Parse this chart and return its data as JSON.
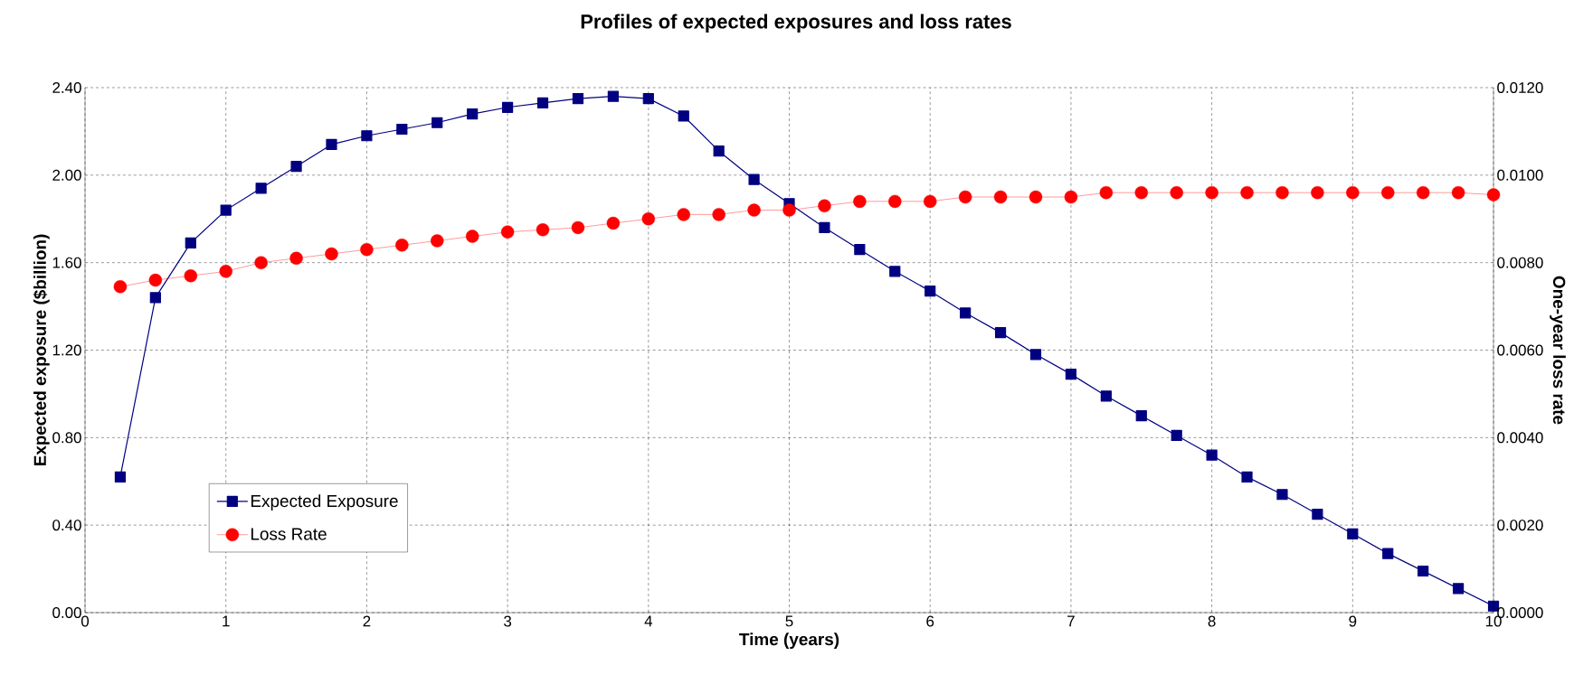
{
  "chart_data": {
    "type": "line",
    "title": "Profiles of expected exposures and loss rates",
    "xlabel": "Time (years)",
    "ylabel": "Expected exposure ($billion)",
    "y2label": "One-year loss rate",
    "x": [
      0.25,
      0.5,
      0.75,
      1,
      1.25,
      1.5,
      1.75,
      2,
      2.25,
      2.5,
      2.75,
      3,
      3.25,
      3.5,
      3.75,
      4,
      4.25,
      4.5,
      4.75,
      5,
      5.25,
      5.5,
      5.75,
      6,
      6.25,
      6.5,
      6.75,
      7,
      7.25,
      7.5,
      7.75,
      8,
      8.25,
      8.5,
      8.75,
      9,
      9.25,
      9.5,
      9.75,
      10
    ],
    "series": [
      {
        "name": "Expected Exposure",
        "color": "#000080",
        "marker": "square",
        "values": [
          0.62,
          1.44,
          1.69,
          1.84,
          1.94,
          2.04,
          2.14,
          2.18,
          2.21,
          2.24,
          2.28,
          2.31,
          2.33,
          2.35,
          2.36,
          2.35,
          2.27,
          2.11,
          1.98,
          1.87,
          1.76,
          1.66,
          1.56,
          1.47,
          1.37,
          1.28,
          1.18,
          1.09,
          0.99,
          0.9,
          0.81,
          0.72,
          0.62,
          0.54,
          0.45,
          0.36,
          0.27,
          0.19,
          0.11,
          0.03
        ]
      },
      {
        "name": "Loss Rate",
        "color": "#ff0000",
        "marker": "circle",
        "axis": "y2",
        "values": [
          0.00745,
          0.0076,
          0.0077,
          0.0078,
          0.008,
          0.0081,
          0.0082,
          0.0083,
          0.0084,
          0.0085,
          0.0086,
          0.0087,
          0.00875,
          0.0088,
          0.0089,
          0.009,
          0.0091,
          0.0091,
          0.0092,
          0.0092,
          0.0093,
          0.0094,
          0.0094,
          0.0094,
          0.0095,
          0.0095,
          0.0095,
          0.0095,
          0.0096,
          0.0096,
          0.0096,
          0.0096,
          0.0096,
          0.0096,
          0.0096,
          0.0096,
          0.0096,
          0.0096,
          0.0096,
          0.00955
        ]
      }
    ],
    "xlim": [
      0,
      10
    ],
    "xticks": [
      0,
      1,
      2,
      3,
      4,
      5,
      6,
      7,
      8,
      9,
      10
    ],
    "ylim": [
      0,
      2.4
    ],
    "yticks": [
      {
        "value": 0,
        "label": "0.00"
      },
      {
        "value": 0.4,
        "label": "0.40"
      },
      {
        "value": 0.8,
        "label": "0.80"
      },
      {
        "value": 1.2,
        "label": "1.20"
      },
      {
        "value": 1.6,
        "label": "1.60"
      },
      {
        "value": 2.0,
        "label": "2.00"
      },
      {
        "value": 2.4,
        "label": "2.40"
      }
    ],
    "y2lim": [
      0,
      0.012
    ],
    "y2ticks": [
      {
        "value": 0,
        "label": "0.0000"
      },
      {
        "value": 0.002,
        "label": "0.0020"
      },
      {
        "value": 0.004,
        "label": "0.0040"
      },
      {
        "value": 0.006,
        "label": "0.0060"
      },
      {
        "value": 0.008,
        "label": "0.0080"
      },
      {
        "value": 0.01,
        "label": "0.0100"
      },
      {
        "value": 0.012,
        "label": "0.0120"
      }
    ],
    "grid": true,
    "legend": "bottom left",
    "line_style": "solid"
  }
}
